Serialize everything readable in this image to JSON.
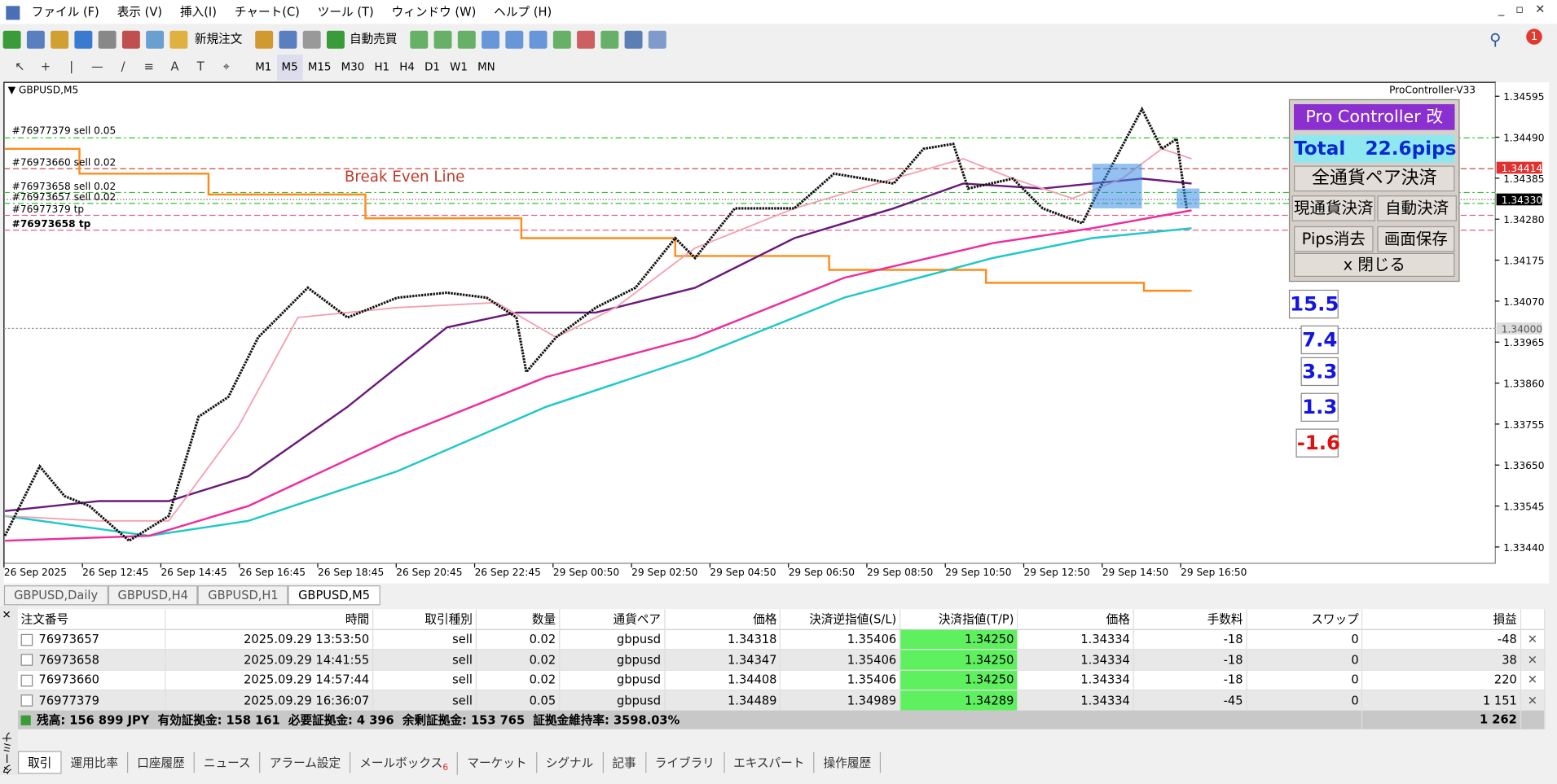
{
  "window": {
    "menu": [
      "ファイル (F)",
      "表示 (V)",
      "挿入(I)",
      "チャート(C)",
      "ツール (T)",
      "ウィンドウ (W)",
      "ヘルプ (H)"
    ],
    "notifications": "1"
  },
  "toolbar": {
    "new_order": "新規注文",
    "auto_trading": "自動売買",
    "timeframes": [
      "M1",
      "M5",
      "M15",
      "M30",
      "H1",
      "H4",
      "D1",
      "W1",
      "MN"
    ]
  },
  "chart": {
    "symbol": "GBPUSD,M5",
    "indicator": "ProController-V33",
    "price_axis": [
      "1.34595",
      "1.34490",
      "1.34385",
      "1.34280",
      "1.34175",
      "1.34070",
      "1.33965",
      "1.33860",
      "1.33755",
      "1.33650",
      "1.33545",
      "1.33440"
    ],
    "time_axis": [
      "26 Sep 2025",
      "26 Sep 12:45",
      "26 Sep 14:45",
      "26 Sep 16:45",
      "26 Sep 18:45",
      "26 Sep 20:45",
      "26 Sep 22:45",
      "29 Sep 00:50",
      "29 Sep 02:50",
      "29 Sep 04:50",
      "29 Sep 06:50",
      "29 Sep 08:50",
      "29 Sep 10:50",
      "29 Sep 12:50",
      "29 Sep 14:50",
      "29 Sep 16:50"
    ],
    "price_tags": [
      "1.34414",
      "1.34330",
      "1.34000"
    ],
    "order_lines": [
      "#76977379 sell 0.05",
      "#76973660 sell 0.02",
      "#76973658 sell 0.02",
      "#76973657 sell 0.02",
      "#76977379 tp",
      "#76973658 tp"
    ],
    "break_even": "Break Even Line"
  },
  "panel": {
    "title": "Pro Controller 改",
    "total": "Total   22.6pips",
    "buttons": [
      "全通貨ペア決済",
      "現通貨決済",
      "自動決済",
      "Pips消去",
      "画面保存",
      "x 閉じる"
    ]
  },
  "pips": [
    "15.5",
    "7.4",
    "3.3",
    "1.3",
    "-1.6"
  ],
  "chart_tabs": [
    "GBPUSD,Daily",
    "GBPUSD,H4",
    "GBPUSD,H1",
    "GBPUSD,M5"
  ],
  "table": {
    "headers": [
      "注文番号",
      "時間",
      "取引種別",
      "数量",
      "通貨ペア",
      "価格",
      "決済逆指値(S/L)",
      "決済指値(T/P)",
      "価格",
      "手数料",
      "スワップ",
      "損益"
    ],
    "rows": [
      [
        "76973657",
        "2025.09.29 13:53:50",
        "sell",
        "0.02",
        "gbpusd",
        "1.34318",
        "1.35406",
        "1.34250",
        "1.34334",
        "-18",
        "0",
        "-48"
      ],
      [
        "76973658",
        "2025.09.29 14:41:55",
        "sell",
        "0.02",
        "gbpusd",
        "1.34347",
        "1.35406",
        "1.34250",
        "1.34334",
        "-18",
        "0",
        "38"
      ],
      [
        "76973660",
        "2025.09.29 14:57:44",
        "sell",
        "0.02",
        "gbpusd",
        "1.34408",
        "1.35406",
        "1.34250",
        "1.34334",
        "-18",
        "0",
        "220"
      ],
      [
        "76977379",
        "2025.09.29 16:36:07",
        "sell",
        "0.05",
        "gbpusd",
        "1.34489",
        "1.34989",
        "1.34289",
        "1.34334",
        "-45",
        "0",
        "1 151"
      ]
    ],
    "summary": "残高: 156 899 JPY  有効証拠金: 158 161  必要証拠金: 4 396  余剰証拠金: 153 765  証拠金維持率: 3598.03%",
    "summary_total": "1 262"
  },
  "terminal_label": "ターミナル",
  "bottom_tabs": [
    "取引",
    "運用比率",
    "口座履歴",
    "ニュース",
    "アラーム設定",
    "メールボックス",
    "マーケット",
    "シグナル",
    "記事",
    "ライブラリ",
    "エキスパート",
    "操作履歴"
  ],
  "mailbox_badge": "6"
}
